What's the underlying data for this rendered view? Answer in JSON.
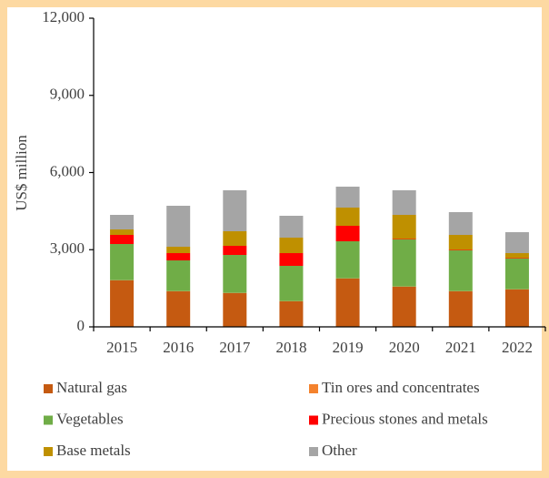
{
  "chart_data": {
    "type": "stacked_bar",
    "y_label": "US$ million",
    "categories": [
      "2015",
      "2016",
      "2017",
      "2018",
      "2019",
      "2020",
      "2021",
      "2022"
    ],
    "series": [
      {
        "name": "Natural gas",
        "color": "#c55a11",
        "values": [
          1805,
          1380,
          1310,
          991,
          1876,
          1558,
          1380,
          1451
        ]
      },
      {
        "name": "Tin ores and concentrates",
        "color": "#f4822d",
        "values": [
          10,
          10,
          10,
          10,
          10,
          10,
          10,
          10
        ]
      },
      {
        "name": "Vegetables",
        "color": "#70ad47",
        "values": [
          1406,
          1194,
          1476,
          1371,
          1441,
          1830,
          1583,
          1194
        ]
      },
      {
        "name": "Precious stones and metals",
        "color": "#ff0000",
        "values": [
          354,
          283,
          354,
          495,
          602,
          20,
          20,
          20
        ]
      },
      {
        "name": "Base metals",
        "color": "#bf9000",
        "values": [
          213,
          248,
          567,
          602,
          708,
          936,
          582,
          192
        ]
      },
      {
        "name": "Other",
        "color": "#a5a5a5",
        "values": [
          566,
          1593,
          1593,
          850,
          814,
          956,
          885,
          814
        ]
      }
    ],
    "ylim": [
      0,
      12000
    ],
    "yticks": [
      0,
      {
        "value": 3000,
        "label": "3,000"
      },
      {
        "value": 6000,
        "label": "6,000"
      },
      {
        "value": 9000,
        "label": "9,000"
      },
      {
        "value": 12000,
        "label": "12,000"
      }
    ],
    "legend": "bottom"
  }
}
